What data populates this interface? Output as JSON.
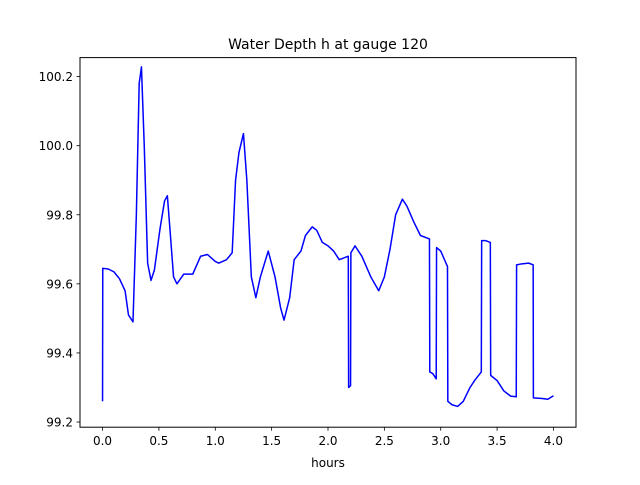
{
  "chart_data": {
    "type": "line",
    "title": "Water Depth h at gauge 120",
    "xlabel": "hours",
    "ylabel": "",
    "xlim": [
      -0.2,
      4.2
    ],
    "ylim": [
      99.185,
      100.255
    ],
    "grid": false,
    "xticks": [
      0.0,
      0.5,
      1.0,
      1.5,
      2.0,
      2.5,
      3.0,
      3.5,
      4.0
    ],
    "xtick_labels": [
      "0.0",
      "0.5",
      "1.0",
      "1.5",
      "2.0",
      "2.5",
      "3.0",
      "3.5",
      "4.0"
    ],
    "yticks": [
      99.2,
      99.4,
      99.6,
      99.8,
      100.0,
      100.2
    ],
    "ytick_labels": [
      "99.2",
      "99.4",
      "99.6",
      "99.8",
      "100.0",
      "100.2"
    ],
    "series": [
      {
        "color": "#0000ff",
        "points": [
          [
            0.0,
            99.26
          ],
          [
            0.002,
            99.645
          ],
          [
            0.05,
            99.643
          ],
          [
            0.1,
            99.635
          ],
          [
            0.15,
            99.615
          ],
          [
            0.2,
            99.58
          ],
          [
            0.23,
            99.51
          ],
          [
            0.27,
            99.49
          ],
          [
            0.3,
            99.8
          ],
          [
            0.325,
            100.18
          ],
          [
            0.345,
            100.228
          ],
          [
            0.37,
            100.0
          ],
          [
            0.4,
            99.66
          ],
          [
            0.43,
            99.61
          ],
          [
            0.46,
            99.64
          ],
          [
            0.51,
            99.76
          ],
          [
            0.55,
            99.84
          ],
          [
            0.575,
            99.855
          ],
          [
            0.6,
            99.75
          ],
          [
            0.63,
            99.62
          ],
          [
            0.66,
            99.6
          ],
          [
            0.72,
            99.628
          ],
          [
            0.8,
            99.628
          ],
          [
            0.87,
            99.68
          ],
          [
            0.93,
            99.685
          ],
          [
            1.0,
            99.665
          ],
          [
            1.03,
            99.66
          ],
          [
            1.1,
            99.67
          ],
          [
            1.15,
            99.69
          ],
          [
            1.18,
            99.9
          ],
          [
            1.21,
            99.98
          ],
          [
            1.25,
            100.035
          ],
          [
            1.28,
            99.9
          ],
          [
            1.32,
            99.62
          ],
          [
            1.36,
            99.56
          ],
          [
            1.4,
            99.62
          ],
          [
            1.47,
            99.695
          ],
          [
            1.53,
            99.62
          ],
          [
            1.58,
            99.53
          ],
          [
            1.61,
            99.495
          ],
          [
            1.66,
            99.56
          ],
          [
            1.7,
            99.67
          ],
          [
            1.76,
            99.695
          ],
          [
            1.8,
            99.74
          ],
          [
            1.86,
            99.765
          ],
          [
            1.9,
            99.755
          ],
          [
            1.95,
            99.72
          ],
          [
            2.0,
            99.71
          ],
          [
            2.05,
            99.695
          ],
          [
            2.1,
            99.67
          ],
          [
            2.18,
            99.68
          ],
          [
            2.183,
            99.3
          ],
          [
            2.2,
            99.305
          ],
          [
            2.203,
            99.69
          ],
          [
            2.24,
            99.71
          ],
          [
            2.3,
            99.68
          ],
          [
            2.38,
            99.62
          ],
          [
            2.45,
            99.58
          ],
          [
            2.5,
            99.62
          ],
          [
            2.55,
            99.7
          ],
          [
            2.6,
            99.8
          ],
          [
            2.66,
            99.845
          ],
          [
            2.7,
            99.825
          ],
          [
            2.76,
            99.78
          ],
          [
            2.82,
            99.74
          ],
          [
            2.9,
            99.73
          ],
          [
            2.903,
            99.345
          ],
          [
            2.93,
            99.34
          ],
          [
            2.96,
            99.325
          ],
          [
            2.963,
            99.705
          ],
          [
            3.0,
            99.695
          ],
          [
            3.06,
            99.65
          ],
          [
            3.063,
            99.26
          ],
          [
            3.1,
            99.25
          ],
          [
            3.15,
            99.245
          ],
          [
            3.2,
            99.26
          ],
          [
            3.26,
            99.3
          ],
          [
            3.3,
            99.32
          ],
          [
            3.36,
            99.345
          ],
          [
            3.363,
            99.725
          ],
          [
            3.4,
            99.725
          ],
          [
            3.44,
            99.72
          ],
          [
            3.443,
            99.335
          ],
          [
            3.5,
            99.32
          ],
          [
            3.56,
            99.29
          ],
          [
            3.62,
            99.275
          ],
          [
            3.67,
            99.273
          ],
          [
            3.673,
            99.655
          ],
          [
            3.72,
            99.658
          ],
          [
            3.78,
            99.66
          ],
          [
            3.82,
            99.655
          ],
          [
            3.822,
            99.27
          ],
          [
            3.9,
            99.268
          ],
          [
            3.95,
            99.266
          ],
          [
            4.0,
            99.276
          ]
        ]
      }
    ]
  }
}
